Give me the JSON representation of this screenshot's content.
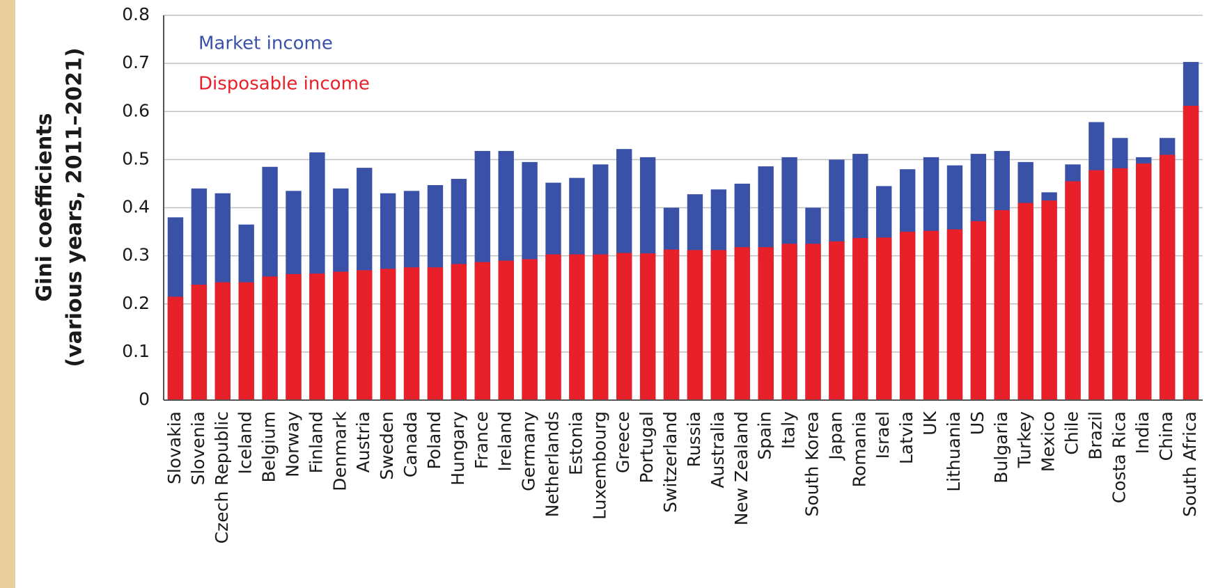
{
  "chart_data": {
    "type": "bar",
    "y_label": [
      "Gini coefficients",
      "(various years, 2011–2021)"
    ],
    "categories": [
      "Slovakia",
      "Slovenia",
      "Czech Republic",
      "Iceland",
      "Belgium",
      "Norway",
      "Finland",
      "Denmark",
      "Austria",
      "Sweden",
      "Canada",
      "Poland",
      "Hungary",
      "France",
      "Ireland",
      "Germany",
      "Netherlands",
      "Estonia",
      "Luxembourg",
      "Greece",
      "Portugal",
      "Switzerland",
      "Russia",
      "Australia",
      "New Zealand",
      "Spain",
      "Italy",
      "South Korea",
      "Japan",
      "Romania",
      "Israel",
      "Latvia",
      "UK",
      "Lithuania",
      "US",
      "Bulgaria",
      "Turkey",
      "Mexico",
      "Chile",
      "Brazil",
      "Costa Rica",
      "India",
      "China",
      "South Africa"
    ],
    "series": [
      {
        "name": "Market income",
        "color": "#3a51a8",
        "values": [
          0.38,
          0.44,
          0.43,
          0.365,
          0.485,
          0.435,
          0.515,
          0.44,
          0.483,
          0.43,
          0.435,
          0.447,
          0.46,
          0.518,
          0.518,
          0.495,
          0.452,
          0.462,
          0.49,
          0.522,
          0.505,
          0.4,
          0.428,
          0.438,
          0.45,
          0.486,
          0.505,
          0.4,
          0.5,
          0.512,
          0.445,
          0.48,
          0.505,
          0.488,
          0.512,
          0.518,
          0.495,
          0.432,
          0.49,
          0.578,
          0.545,
          0.505,
          0.545,
          0.703
        ]
      },
      {
        "name": "Disposable income",
        "color": "#e8202a",
        "values": [
          0.215,
          0.24,
          0.245,
          0.245,
          0.257,
          0.262,
          0.263,
          0.267,
          0.27,
          0.273,
          0.276,
          0.276,
          0.283,
          0.287,
          0.29,
          0.293,
          0.303,
          0.303,
          0.303,
          0.306,
          0.305,
          0.313,
          0.312,
          0.312,
          0.318,
          0.318,
          0.325,
          0.325,
          0.33,
          0.337,
          0.338,
          0.35,
          0.352,
          0.355,
          0.372,
          0.395,
          0.41,
          0.415,
          0.455,
          0.478,
          0.482,
          0.492,
          0.51,
          0.612
        ]
      }
    ],
    "overlap": true,
    "ylim": [
      0,
      0.8
    ],
    "yticks": [
      0,
      0.1,
      0.2,
      0.3,
      0.4,
      0.5,
      0.6,
      0.7,
      0.8
    ],
    "grid": true
  }
}
